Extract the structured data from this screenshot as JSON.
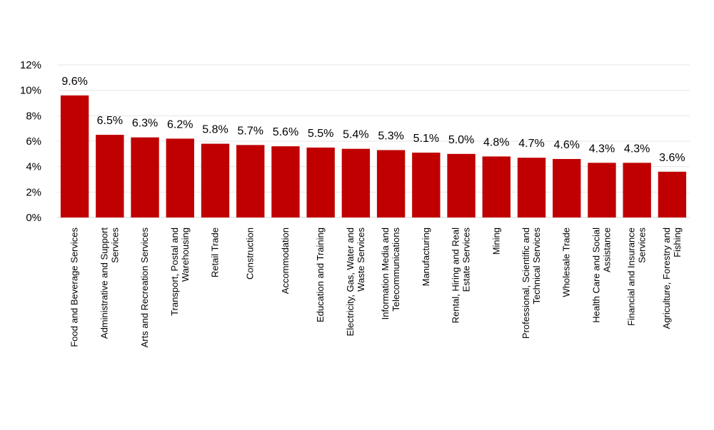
{
  "chart_data": {
    "type": "bar",
    "title": "",
    "xlabel": "",
    "ylabel": "",
    "ylim": [
      0,
      12
    ],
    "yticks": [
      "0%",
      "2%",
      "4%",
      "6%",
      "8%",
      "10%",
      "12%"
    ],
    "grid": true,
    "legend": "none",
    "bar_color": "#C00000",
    "categories": [
      [
        "Food and Beverage Services"
      ],
      [
        "Administrative and Support",
        "Services"
      ],
      [
        "Arts and Recreation Services"
      ],
      [
        "Transport, Postal and",
        "Warehousing"
      ],
      [
        "Retail Trade"
      ],
      [
        "Construction"
      ],
      [
        "Accommodation"
      ],
      [
        "Education and Training"
      ],
      [
        "Electricity, Gas, Water and",
        "Waste Services"
      ],
      [
        "Information Media and",
        "Telecommunications"
      ],
      [
        "Manufacturing"
      ],
      [
        "Rental, Hiring and Real",
        "Estate Services"
      ],
      [
        "Mining"
      ],
      [
        "Professional, Scientific and",
        "Technical Services"
      ],
      [
        "Wholesale Trade"
      ],
      [
        "Health Care and Social",
        "Assistance"
      ],
      [
        "Financial and Insurance",
        "Services"
      ],
      [
        "Agriculture, Forestry and",
        "Fishing"
      ]
    ],
    "values": [
      9.6,
      6.5,
      6.3,
      6.2,
      5.8,
      5.7,
      5.6,
      5.5,
      5.4,
      5.3,
      5.1,
      5.0,
      4.8,
      4.7,
      4.6,
      4.3,
      4.3,
      3.6
    ],
    "data_labels": [
      "9.6%",
      "6.5%",
      "6.3%",
      "6.2%",
      "5.8%",
      "5.7%",
      "5.6%",
      "5.5%",
      "5.4%",
      "5.3%",
      "5.1%",
      "5.0%",
      "4.8%",
      "4.7%",
      "4.6%",
      "4.3%",
      "4.3%",
      "3.6%"
    ]
  }
}
